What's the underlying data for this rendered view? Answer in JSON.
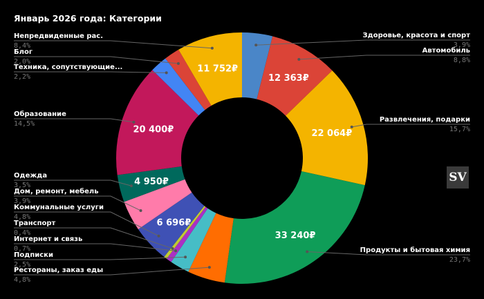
{
  "logo_text": "SV",
  "chart_data": {
    "type": "pie",
    "donut": true,
    "title": "Январь 2026 года: Категории",
    "currency": "₽",
    "slices": [
      {
        "label": "Здоровье, красота и спорт",
        "percent": 3.9,
        "pct_text": "3,9%",
        "color": "#4a86c8",
        "side": "right"
      },
      {
        "label": "Автомобиль",
        "percent": 8.8,
        "value_text": "12 363₽",
        "pct_text": "8,8%",
        "color": "#db4437",
        "side": "right"
      },
      {
        "label": "Развлечения, подарки",
        "percent": 15.7,
        "value_text": "22 064₽",
        "pct_text": "15,7%",
        "color": "#f4b400",
        "side": "right"
      },
      {
        "label": "Продукты и бытовая химия",
        "percent": 23.7,
        "value_text": "33 240₽",
        "pct_text": "23,7%",
        "color": "#0f9d58",
        "side": "right"
      },
      {
        "label": "Рестораны, заказ еды",
        "percent": 4.8,
        "pct_text": "4,8%",
        "color": "#ff6d01",
        "side": "left"
      },
      {
        "label": "Подписки",
        "percent": 2.5,
        "pct_text": "2,5%",
        "color": "#46bdc6",
        "side": "left"
      },
      {
        "label": "Интернет и связь",
        "percent": 0.7,
        "pct_text": "0,7%",
        "color": "#ab30c4",
        "side": "left"
      },
      {
        "label": "Транспорт",
        "percent": 0.4,
        "pct_text": "0,4%",
        "color": "#c0ca33",
        "side": "left"
      },
      {
        "label": "Коммунальные услуги",
        "percent": 4.8,
        "value_text": "6 696₽",
        "pct_text": "4,8%",
        "color": "#3f51b5",
        "side": "left"
      },
      {
        "label": "Дом, ремонт, мебель",
        "percent": 3.9,
        "pct_text": "3,9%",
        "color": "#ff7baa",
        "side": "left"
      },
      {
        "label": "Одежда",
        "percent": 3.5,
        "value_text": "4 950₽",
        "pct_text": "3,5%",
        "color": "#00695c",
        "side": "left"
      },
      {
        "label": "Образование",
        "percent": 14.5,
        "value_text": "20 400₽",
        "pct_text": "14,5%",
        "color": "#c2185b",
        "side": "left"
      },
      {
        "label": "Техника, сопутствующие...",
        "percent": 2.2,
        "pct_text": "2,2%",
        "color": "#4285f4",
        "side": "left"
      },
      {
        "label": "Блог",
        "percent": 2.0,
        "pct_text": "2,0%",
        "color": "#db4437",
        "side": "left"
      },
      {
        "label": "Непредвиденные рас.",
        "percent": 8.4,
        "value_text": "11 752₽",
        "pct_text": "8,4%",
        "color": "#f4b400",
        "side": "left"
      }
    ]
  }
}
